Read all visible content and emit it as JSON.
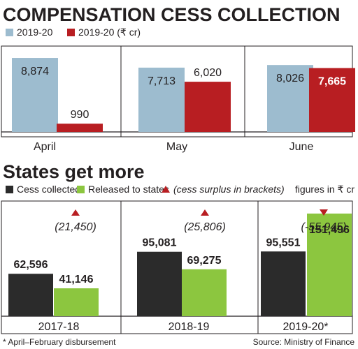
{
  "chart_data": [
    {
      "type": "bar",
      "title": "COMPENSATION CESS COLLECTION",
      "categories": [
        "April",
        "May",
        "June"
      ],
      "series": [
        {
          "name": "2019-20",
          "values": [
            8874,
            7713,
            8026
          ],
          "color": "#9dbccf"
        },
        {
          "name": "2019-20 (₹ cr)",
          "values": [
            990,
            6020,
            7665
          ],
          "color": "#b81e22"
        }
      ],
      "value_labels": [
        [
          "8,874",
          "7,713",
          "8,026"
        ],
        [
          "990",
          "6,020",
          "7,665"
        ]
      ],
      "ylim": [
        0,
        10300
      ],
      "grid": false
    },
    {
      "type": "bar",
      "title": "States get more",
      "units_note": "figures in ₹ cr",
      "categories": [
        "2017-18",
        "2018-19",
        "2019-20*"
      ],
      "series": [
        {
          "name": "Cess collected",
          "values": [
            62596,
            95081,
            95551
          ],
          "color": "#2b2b2b"
        },
        {
          "name": "Released to states",
          "values": [
            41146,
            69275,
            151496
          ],
          "color": "#8cc63f"
        }
      ],
      "value_labels": [
        [
          "62,596",
          "95,081",
          "95,551"
        ],
        [
          "41,146",
          "69,275",
          "151,496"
        ]
      ],
      "surplus_legend": "(cess surplus in brackets)",
      "surplus": [
        21450,
        25806,
        -55945
      ],
      "surplus_labels": [
        "(21,450)",
        "(25,806)",
        "(-55,945)"
      ],
      "surplus_color": "#b81e22",
      "ylim": [
        0,
        170000
      ],
      "grid": false
    }
  ],
  "footer": {
    "note": "* April–February disbursement",
    "source": "Source: Ministry of Finance"
  }
}
